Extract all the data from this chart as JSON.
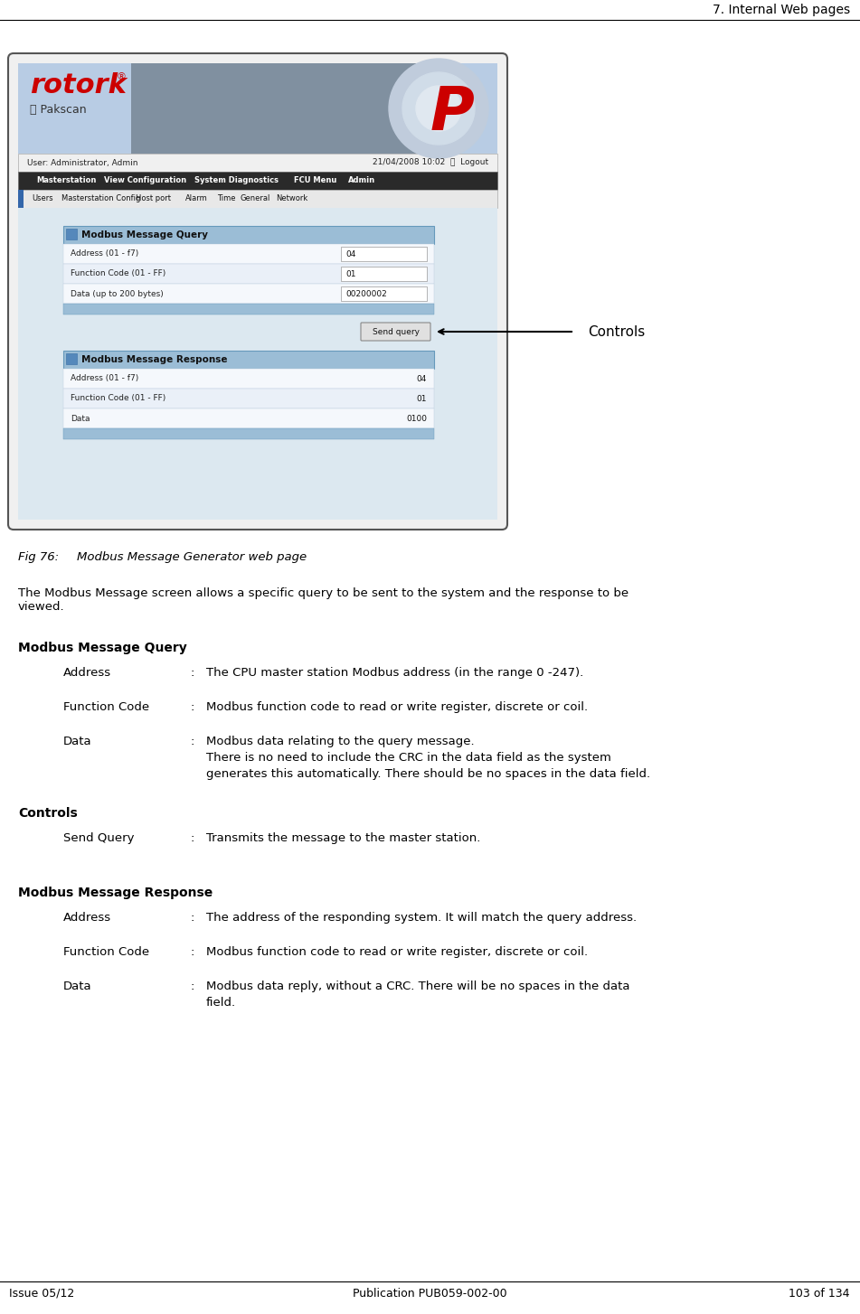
{
  "header_right": "7. Internal Web pages",
  "footer_left": "Issue 05/12",
  "footer_center": "Publication PUB059-002-00",
  "footer_right": "103 of 134",
  "fig_label": "Fig 76:",
  "fig_caption": "Modbus Message Generator web page",
  "section1_title": "Modbus Message Query",
  "section1_items": [
    {
      "term": "Address",
      "desc_lines": [
        "The CPU master station Modbus address (in the range 0 -247)."
      ]
    },
    {
      "term": "Function Code",
      "desc_lines": [
        "Modbus function code to read or write register, discrete or coil."
      ]
    },
    {
      "term": "Data",
      "desc_lines": [
        "Modbus data relating to the query message.",
        "There is no need to include the CRC in the data field as the system",
        "generates this automatically. There should be no spaces in the data field."
      ]
    }
  ],
  "section2_title": "Controls",
  "section2_items": [
    {
      "term": "Send Query",
      "desc_lines": [
        "Transmits the message to the master station."
      ]
    }
  ],
  "section3_title": "Modbus Message Response",
  "section3_items": [
    {
      "term": "Address",
      "desc_lines": [
        "The address of the responding system. It will match the query address."
      ]
    },
    {
      "term": "Function Code",
      "desc_lines": [
        "Modbus function code to read or write register, discrete or coil."
      ]
    },
    {
      "term": "Data",
      "desc_lines": [
        "Modbus data reply, without a CRC. There will be no spaces in the data",
        "field."
      ]
    }
  ],
  "controls_label": "Controls",
  "bg_color": "#ffffff",
  "text_color": "#000000"
}
